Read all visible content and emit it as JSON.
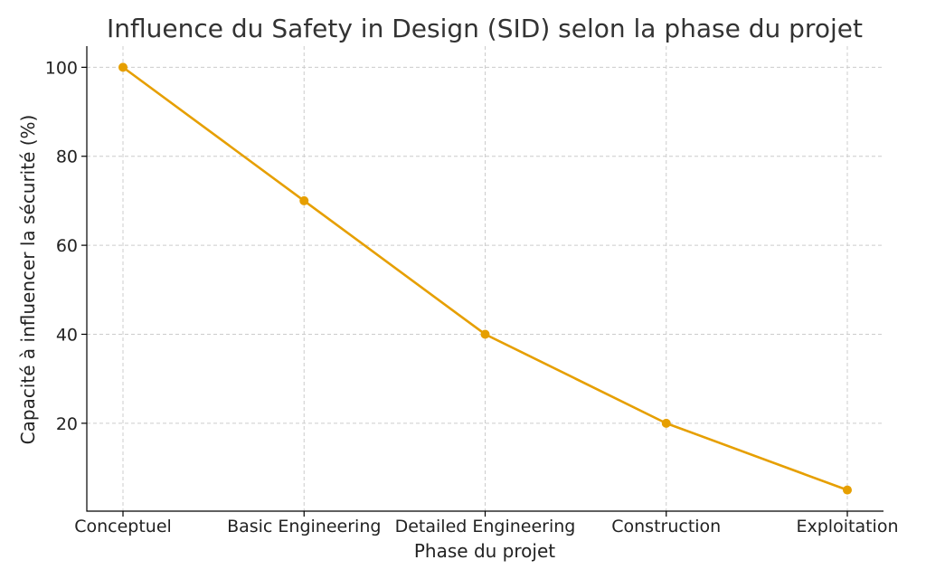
{
  "chart_data": {
    "type": "line",
    "title": "Influence du Safety in Design (SID) selon la phase du projet",
    "xlabel": "Phase du projet",
    "ylabel": "Capacité à influencer la sécurité (%)",
    "categories": [
      "Conceptuel",
      "Basic Engineering",
      "Detailed Engineering",
      "Construction",
      "Exploitation"
    ],
    "series": [
      {
        "values": [
          100,
          70,
          40,
          20,
          5
        ]
      }
    ],
    "ylim": [
      0.25,
      104.75
    ],
    "yticks": [
      20,
      40,
      60,
      80,
      100
    ],
    "grid": true,
    "legend": "none",
    "line_color": "#E69F00"
  }
}
